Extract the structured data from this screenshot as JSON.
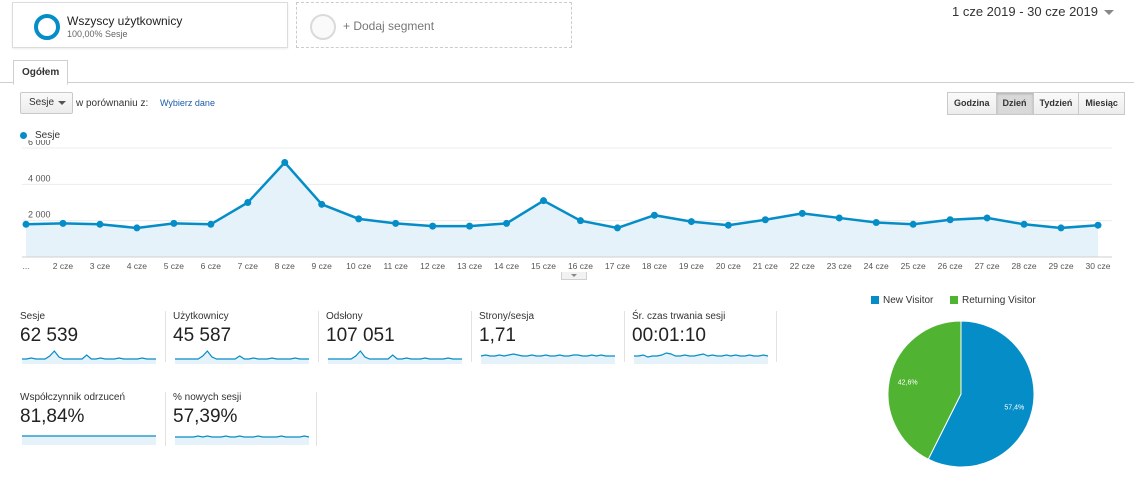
{
  "segments": {
    "active": {
      "title": "Wszyscy użytkownicy",
      "subtitle": "100,00% Sesje"
    },
    "add_label": "+ Dodaj segment"
  },
  "date_range": "1 cze 2019 - 30 cze 2019",
  "tab": {
    "label": "Ogółem"
  },
  "controls": {
    "metric_select": "Sesje",
    "compare_label": "w porównaniu z:",
    "compare_link": "Wybierz dane",
    "periods": [
      "Godzina",
      "Dzień",
      "Tydzień",
      "Miesiąc"
    ],
    "active_period": "Dzień"
  },
  "legend": {
    "series": "Sesje"
  },
  "colors": {
    "series": "#058dc7",
    "fill": "#e5f2fa",
    "new_visitor": "#058dc7",
    "returning_visitor": "#50b432"
  },
  "chart_data": {
    "type": "area",
    "y_ticks": [
      "6 000",
      "4 000",
      "2 000"
    ],
    "y_values": [
      6000,
      4000,
      2000
    ],
    "x_labels": [
      "...",
      "2 cze",
      "3 cze",
      "4 cze",
      "5 cze",
      "6 cze",
      "7 cze",
      "8 cze",
      "9 cze",
      "10 cze",
      "11 cze",
      "12 cze",
      "13 cze",
      "14 cze",
      "15 cze",
      "16 cze",
      "17 cze",
      "18 cze",
      "19 cze",
      "20 cze",
      "21 cze",
      "22 cze",
      "23 cze",
      "24 cze",
      "25 cze",
      "26 cze",
      "27 cze",
      "28 cze",
      "29 cze",
      "30 cze"
    ],
    "series": [
      {
        "name": "Sesje",
        "values": [
          1800,
          1850,
          1800,
          1600,
          1850,
          1800,
          3000,
          5200,
          2900,
          2100,
          1850,
          1700,
          1700,
          1850,
          3100,
          2000,
          1600,
          2300,
          1950,
          1750,
          2050,
          2400,
          2150,
          1900,
          1800,
          2050,
          2150,
          1800,
          1600,
          1750
        ]
      }
    ],
    "ylim": [
      0,
      6000
    ]
  },
  "metrics": [
    {
      "label": "Sesje",
      "value": "62 539"
    },
    {
      "label": "Użytkownicy",
      "value": "45 587"
    },
    {
      "label": "Odsłony",
      "value": "107 051"
    },
    {
      "label": "Strony/sesja",
      "value": "1,71"
    },
    {
      "label": "Śr. czas trwania sesji",
      "value": "00:01:10"
    },
    {
      "label": "Współczynnik odrzuceń",
      "value": "81,84%"
    },
    {
      "label": "% nowych sesji",
      "value": "57,39%"
    }
  ],
  "pie": {
    "legend": [
      {
        "label": "New Visitor",
        "color": "#058dc7"
      },
      {
        "label": "Returning Visitor",
        "color": "#50b432"
      }
    ],
    "slices": [
      {
        "name": "New Visitor",
        "value": 57.4,
        "label": "57,4%"
      },
      {
        "name": "Returning Visitor",
        "value": 42.6,
        "label": "42,6%"
      }
    ]
  }
}
